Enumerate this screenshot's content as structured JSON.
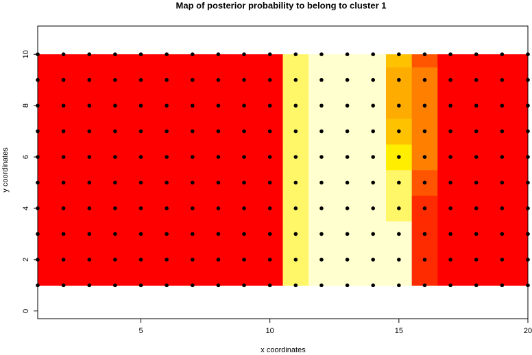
{
  "chart_data": {
    "type": "heatmap",
    "title": "Map of posterior probability to belong to cluster  1",
    "x_label": "x coordinates",
    "y_label": "y coordinates",
    "xlim": [
      1,
      20
    ],
    "ylim": [
      -0.3,
      11.1
    ],
    "xticks": [
      5,
      10,
      15,
      20
    ],
    "yticks": [
      0,
      2,
      4,
      6,
      8,
      10
    ],
    "grid_x": [
      1,
      2,
      3,
      4,
      5,
      6,
      7,
      8,
      9,
      10,
      11,
      12,
      13,
      14,
      15,
      16,
      17,
      18,
      19,
      20
    ],
    "grid_y": [
      1,
      2,
      3,
      4,
      5,
      6,
      7,
      8,
      9,
      10
    ],
    "z": [
      [
        0,
        0,
        0,
        0,
        0,
        0,
        0,
        0,
        0,
        0,
        0.9,
        1,
        1,
        1,
        1,
        0.1,
        0,
        0,
        0,
        0
      ],
      [
        0,
        0,
        0,
        0,
        0,
        0,
        0,
        0,
        0,
        0,
        0.9,
        1,
        1,
        1,
        1,
        0.1,
        0,
        0,
        0,
        0
      ],
      [
        0,
        0,
        0,
        0,
        0,
        0,
        0,
        0,
        0,
        0,
        0.9,
        1,
        1,
        1,
        1,
        0.1,
        0,
        0,
        0,
        0
      ],
      [
        0,
        0,
        0,
        0,
        0,
        0,
        0,
        0,
        0,
        0,
        0.9,
        1,
        1,
        1,
        0.9,
        0.1,
        0,
        0,
        0,
        0
      ],
      [
        0,
        0,
        0,
        0,
        0,
        0,
        0,
        0,
        0,
        0,
        0.9,
        1,
        1,
        1,
        0.9,
        0.2,
        0,
        0,
        0,
        0
      ],
      [
        0,
        0,
        0,
        0,
        0,
        0,
        0,
        0,
        0,
        0,
        0.9,
        1,
        1,
        1,
        0.8,
        0.3,
        0,
        0,
        0,
        0
      ],
      [
        0,
        0,
        0,
        0,
        0,
        0,
        0,
        0,
        0,
        0,
        0.9,
        1,
        1,
        1,
        0.6,
        0.3,
        0,
        0,
        0,
        0
      ],
      [
        0,
        0,
        0,
        0,
        0,
        0,
        0,
        0,
        0,
        0,
        0.9,
        1,
        1,
        1,
        0.5,
        0.3,
        0,
        0,
        0,
        0
      ],
      [
        0,
        0,
        0,
        0,
        0,
        0,
        0,
        0,
        0,
        0,
        0.9,
        1,
        1,
        1,
        0.5,
        0.3,
        0,
        0,
        0,
        0
      ],
      [
        0,
        0,
        0,
        0,
        0,
        0,
        0,
        0,
        0,
        0,
        0.9,
        1,
        1,
        1,
        0.6,
        0.2,
        0,
        0,
        0,
        0
      ]
    ],
    "palette": [
      {
        "value": 0,
        "color": "#ff0000"
      },
      {
        "value": 0.3,
        "color": "#ff8000"
      },
      {
        "value": 0.8,
        "color": "#ffee00"
      },
      {
        "value": 1,
        "color": "#ffffd0"
      }
    ],
    "point_color": "#000000"
  }
}
